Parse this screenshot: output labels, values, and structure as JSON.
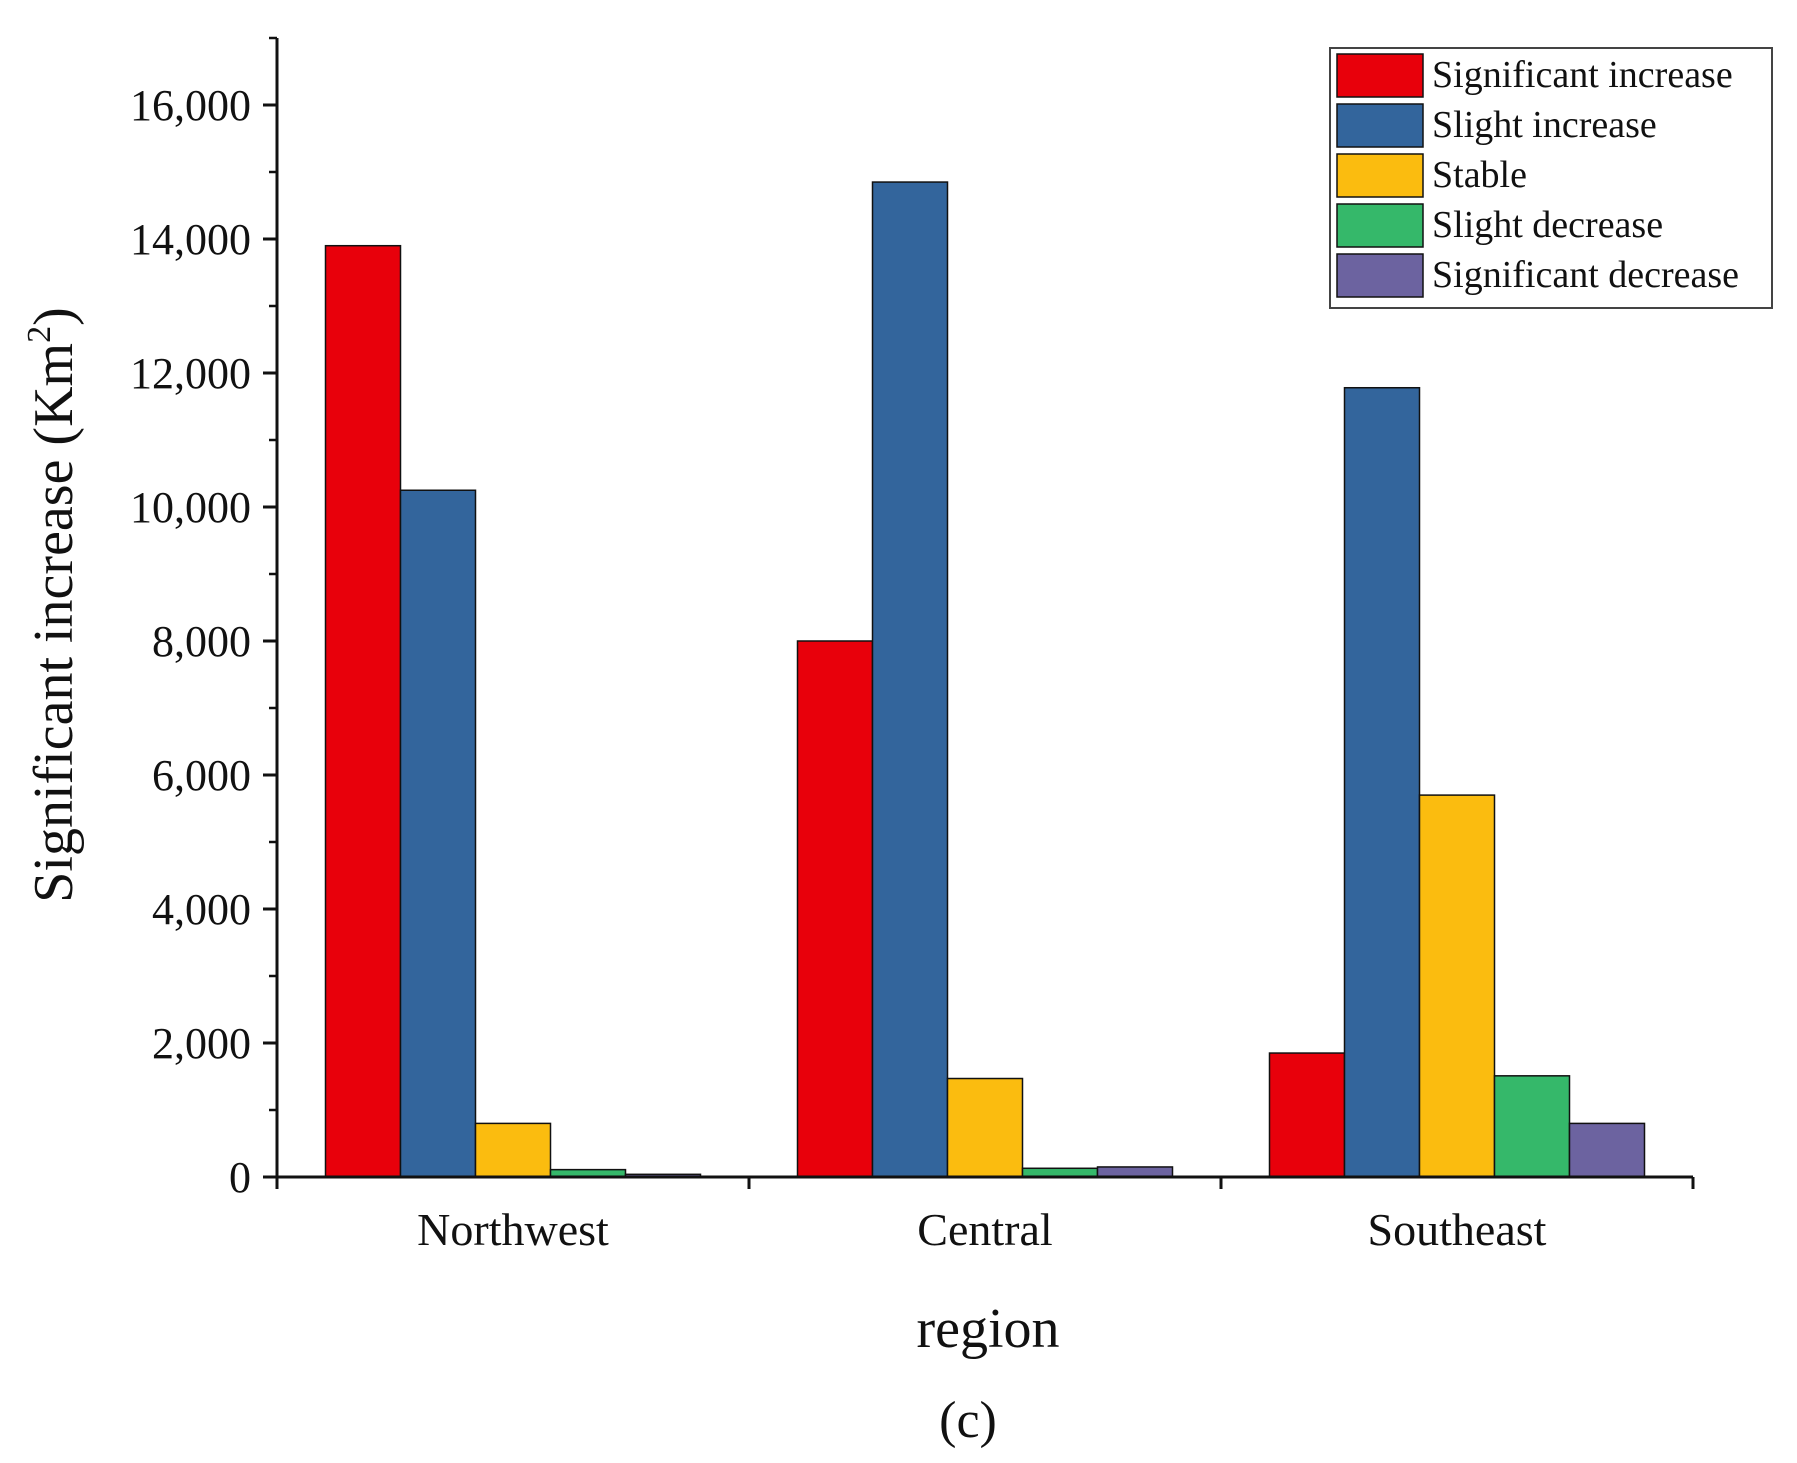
{
  "chart_data": {
    "type": "bar",
    "title": "",
    "caption": "(c)",
    "xlabel": "region",
    "ylabel": {
      "main": "Significant increase (Km",
      "superscript": "2",
      "close": ")"
    },
    "ylim": [
      0,
      17000
    ],
    "yticks": [
      0,
      2000,
      4000,
      6000,
      8000,
      10000,
      12000,
      14000,
      16000
    ],
    "ytick_labels": [
      "0",
      "2,000",
      "4,000",
      "6,000",
      "8,000",
      "10,000",
      "12,000",
      "14,000",
      "16,000"
    ],
    "categories": [
      "Northwest",
      "Central",
      "Southeast"
    ],
    "legend_position": "top-right",
    "grid": false,
    "series": [
      {
        "name": "Significant increase",
        "color": "#e8000b",
        "values": [
          13900,
          8000,
          1850
        ]
      },
      {
        "name": "Slight increase",
        "color": "#33659c",
        "values": [
          10250,
          14850,
          11780
        ]
      },
      {
        "name": "Stable",
        "color": "#fbbc0f",
        "values": [
          800,
          1470,
          5700
        ]
      },
      {
        "name": "Slight decrease",
        "color": "#35b86a",
        "values": [
          110,
          130,
          1510
        ]
      },
      {
        "name": "Significant decrease",
        "color": "#6c63a0",
        "values": [
          40,
          150,
          800
        ]
      }
    ]
  }
}
